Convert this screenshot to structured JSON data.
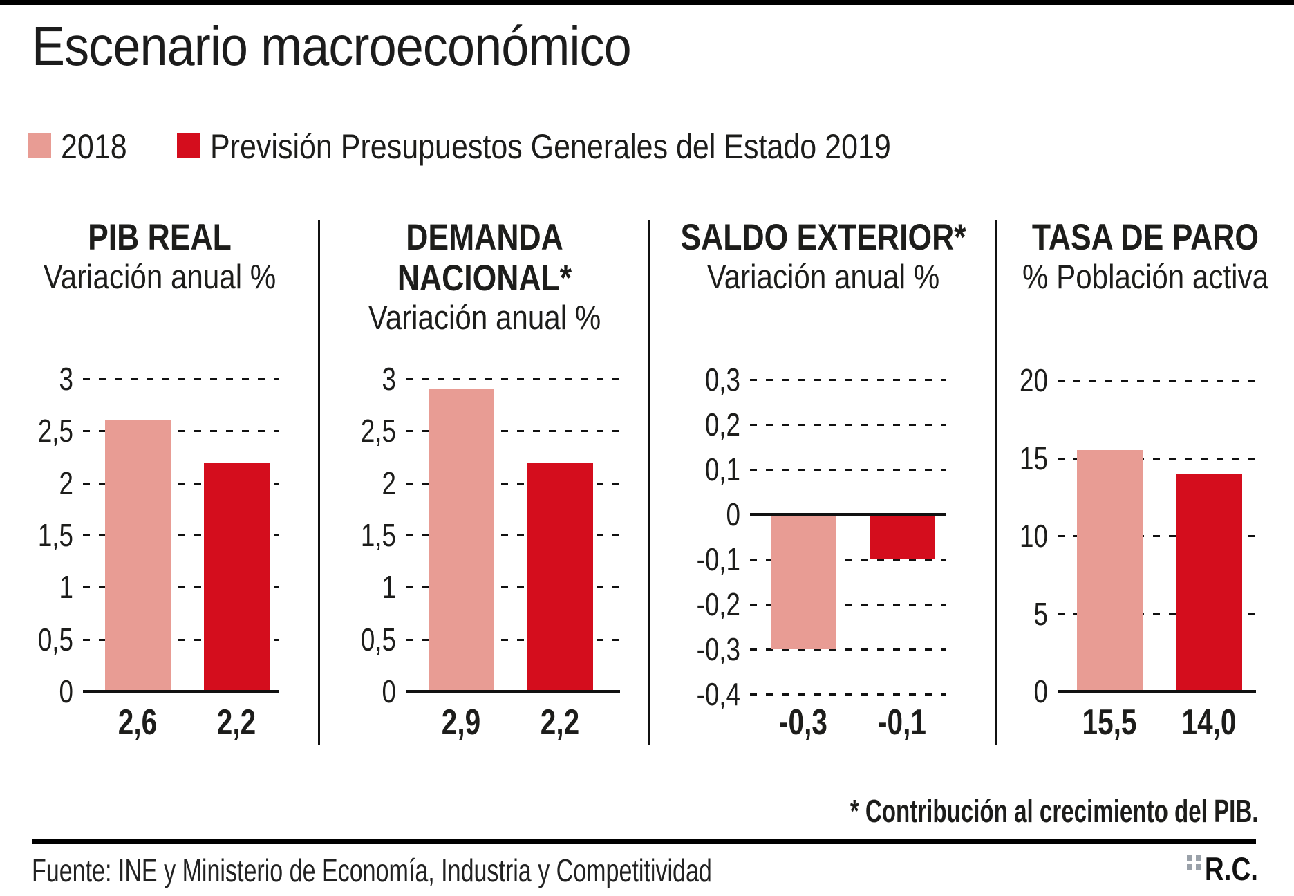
{
  "title": "Escenario macroeconómico",
  "legend": {
    "position": "top",
    "items": [
      {
        "label": "2018",
        "color": "#e89c94"
      },
      {
        "label": "Previsión Presupuestos Generales del Estado 2019",
        "color": "#d40d1d"
      }
    ]
  },
  "chart_data": [
    {
      "type": "bar",
      "title": "PIB REAL",
      "title_lines": [
        "PIB REAL"
      ],
      "subtitle": "Variación anual %",
      "categories": [
        "2018",
        "Previsión Presupuestos Generales del Estado 2019"
      ],
      "values": [
        2.6,
        2.2
      ],
      "value_labels": [
        "2,6",
        "2,2"
      ],
      "ylim": [
        0,
        3
      ],
      "grid": "dashed horizontal",
      "yticks": [
        {
          "value": 3,
          "label": "3"
        },
        {
          "value": 2.5,
          "label": "2,5"
        },
        {
          "value": 2,
          "label": "2"
        },
        {
          "value": 1.5,
          "label": "1,5"
        },
        {
          "value": 1,
          "label": "1"
        },
        {
          "value": 0.5,
          "label": "0,5"
        },
        {
          "value": 0,
          "label": "0"
        }
      ]
    },
    {
      "type": "bar",
      "title": "DEMANDA NACIONAL*",
      "title_lines": [
        "DEMANDA",
        "NACIONAL*"
      ],
      "subtitle": "Variación anual %",
      "categories": [
        "2018",
        "Previsión Presupuestos Generales del Estado 2019"
      ],
      "values": [
        2.9,
        2.2
      ],
      "value_labels": [
        "2,9",
        "2,2"
      ],
      "ylim": [
        0,
        3
      ],
      "grid": "dashed horizontal",
      "yticks": [
        {
          "value": 3,
          "label": "3"
        },
        {
          "value": 2.5,
          "label": "2,5"
        },
        {
          "value": 2,
          "label": "2"
        },
        {
          "value": 1.5,
          "label": "1,5"
        },
        {
          "value": 1,
          "label": "1"
        },
        {
          "value": 0.5,
          "label": "0,5"
        },
        {
          "value": 0,
          "label": "0"
        }
      ]
    },
    {
      "type": "bar",
      "title": "SALDO EXTERIOR*",
      "title_lines": [
        "SALDO EXTERIOR*"
      ],
      "subtitle": "Variación anual %",
      "categories": [
        "2018",
        "Previsión Presupuestos Generales del Estado 2019"
      ],
      "values": [
        -0.3,
        -0.1
      ],
      "value_labels": [
        "-0,3",
        "-0,1"
      ],
      "ylim": [
        -0.4,
        0.3
      ],
      "grid": "dashed horizontal",
      "yticks": [
        {
          "value": 0.3,
          "label": "0,3"
        },
        {
          "value": 0.2,
          "label": "0,2"
        },
        {
          "value": 0.1,
          "label": "0,1"
        },
        {
          "value": 0,
          "label": "0"
        },
        {
          "value": -0.1,
          "label": "-0,1"
        },
        {
          "value": -0.2,
          "label": "-0,2"
        },
        {
          "value": -0.3,
          "label": "-0,3"
        },
        {
          "value": -0.4,
          "label": "-0,4"
        }
      ]
    },
    {
      "type": "bar",
      "title": "TASA DE PARO",
      "title_lines": [
        "TASA DE PARO"
      ],
      "subtitle": "% Población activa",
      "categories": [
        "2018",
        "Previsión Presupuestos Generales del Estado 2019"
      ],
      "values": [
        15.5,
        14.0
      ],
      "value_labels": [
        "15,5",
        "14,0"
      ],
      "ylim": [
        0,
        20
      ],
      "grid": "dashed horizontal",
      "yticks": [
        {
          "value": 20,
          "label": "20"
        },
        {
          "value": 15,
          "label": "15"
        },
        {
          "value": 10,
          "label": "10"
        },
        {
          "value": 5,
          "label": "5"
        },
        {
          "value": 0,
          "label": "0"
        }
      ]
    }
  ],
  "footnote": "* Contribución al crecimiento del PIB.",
  "source": "Fuente: INE y Ministerio de Economía, Industria y Competitividad",
  "credit": "R.C."
}
